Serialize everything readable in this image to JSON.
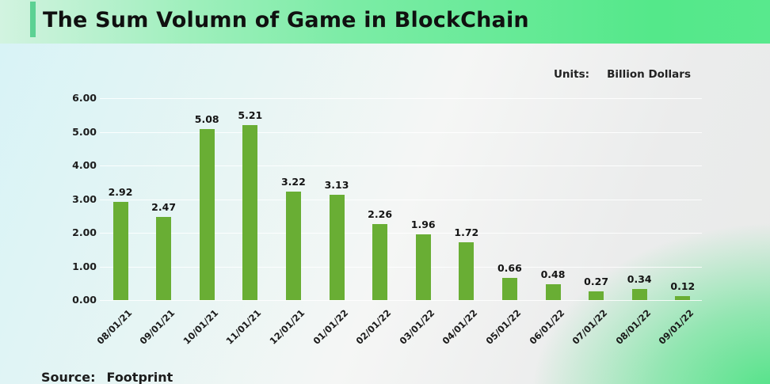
{
  "header": {
    "title": "The Sum Volumn of Game in BlockChain"
  },
  "units": {
    "label": "Units:",
    "value": "Billion Dollars"
  },
  "source": {
    "label": "Source:",
    "value": "Footprint"
  },
  "chart_data": {
    "type": "bar",
    "title": "The Sum Volumn of Game in BlockChain",
    "units": "Billion Dollars",
    "categories": [
      "08/01/21",
      "09/01/21",
      "10/01/21",
      "11/01/21",
      "12/01/21",
      "01/01/22",
      "02/01/22",
      "03/01/22",
      "04/01/22",
      "05/01/22",
      "06/01/22",
      "07/01/22",
      "08/01/22",
      "09/01/22"
    ],
    "values": [
      2.92,
      2.47,
      5.08,
      5.21,
      3.22,
      3.13,
      2.26,
      1.96,
      1.72,
      0.66,
      0.48,
      0.27,
      0.34,
      0.12
    ],
    "value_labels": [
      "2.92",
      "2.47",
      "5.08",
      "5.21",
      "3.22",
      "3.13",
      "2.26",
      "1.96",
      "1.72",
      "0.66",
      "0.48",
      "0.27",
      "0.34",
      "0.12"
    ],
    "xlabel": "",
    "ylabel": "",
    "ylim": [
      0,
      6
    ],
    "yticks": [
      0,
      1,
      2,
      3,
      4,
      5,
      6
    ],
    "ytick_labels": [
      "0.00",
      "1.00",
      "2.00",
      "3.00",
      "4.00",
      "5.00",
      "6.00"
    ],
    "grid": true,
    "legend": "none",
    "bar_color": "#69ae34",
    "source": "Footprint"
  },
  "colors": {
    "bar": "#69ae34",
    "header_gradient_left": "#d2f3e0",
    "header_gradient_right": "#54e88a",
    "accent_bar": "#5cd193",
    "corner_glow": "#48e281"
  }
}
